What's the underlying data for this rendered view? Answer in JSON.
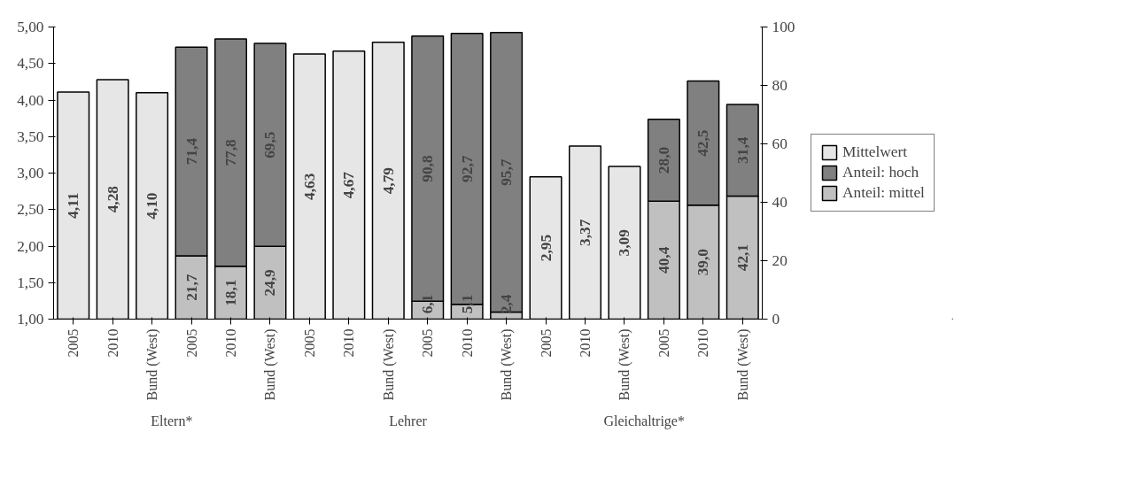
{
  "chart_data": {
    "type": "bar",
    "stacked": true,
    "categories": [
      "2005",
      "2010",
      "Bund (West)",
      "2005",
      "2010",
      "Bund (West)",
      "2005",
      "2010",
      "Bund (West)",
      "2005",
      "2010",
      "Bund (West)",
      "2005",
      "2010",
      "Bund (West)",
      "2005",
      "2010",
      "Bund (West)"
    ],
    "annotations": [
      "Eltern*",
      "Lehrer",
      "Gleichaltrige*"
    ],
    "series": [
      {
        "name": "Mittelwert",
        "color": "#e6e6e6",
        "values": [
          4.11,
          4.28,
          4.1,
          null,
          null,
          null,
          4.63,
          4.67,
          4.79,
          null,
          null,
          null,
          2.95,
          3.37,
          3.09,
          null,
          null,
          null
        ],
        "value_labels": [
          "4,11",
          "4,28",
          "4,10",
          null,
          null,
          null,
          "4,63",
          "4,67",
          "4,79",
          null,
          null,
          null,
          "2,95",
          "3,37",
          "3,09",
          null,
          null,
          null
        ]
      },
      {
        "name": "Anteil: mittel",
        "color": "#c0c0c0",
        "axis": "y2",
        "values": [
          null,
          null,
          null,
          21.7,
          18.1,
          24.9,
          null,
          null,
          null,
          6.1,
          5.1,
          2.4,
          null,
          null,
          null,
          40.4,
          39.0,
          42.1
        ],
        "value_labels": [
          null,
          null,
          null,
          "21,7",
          "18,1",
          "24,9",
          null,
          null,
          null,
          "6,1",
          "5,1",
          "2,4",
          null,
          null,
          null,
          "40,4",
          "39,0",
          "42,1"
        ]
      },
      {
        "name": "Anteil: hoch",
        "color": "#808080",
        "axis": "y2",
        "values": [
          null,
          null,
          null,
          71.4,
          77.8,
          69.5,
          null,
          null,
          null,
          90.8,
          92.7,
          95.7,
          null,
          null,
          null,
          28.0,
          42.5,
          31.4
        ],
        "value_labels": [
          null,
          null,
          null,
          "71,4",
          "77,8",
          "69,5",
          null,
          null,
          null,
          "90,8",
          "92,7",
          "95,7",
          null,
          null,
          null,
          "28,0",
          "42,5",
          "31,4"
        ]
      }
    ],
    "ylim": [
      1,
      5
    ],
    "yticks": [
      {
        "value": 1,
        "label": "1,00"
      },
      {
        "value": 1.5,
        "label": "1,50"
      },
      {
        "value": 2,
        "label": "2,00"
      },
      {
        "value": 2.5,
        "label": "2,50"
      },
      {
        "value": 3,
        "label": "3,00"
      },
      {
        "value": 3.5,
        "label": "3,50"
      },
      {
        "value": 4,
        "label": "4,00"
      },
      {
        "value": 4.5,
        "label": "4,50"
      },
      {
        "value": 5,
        "label": "5,00"
      }
    ],
    "y2lim": [
      0,
      100
    ],
    "y2ticks": [
      0,
      20,
      40,
      60,
      80,
      100
    ],
    "legend": "right",
    "grid": false
  }
}
